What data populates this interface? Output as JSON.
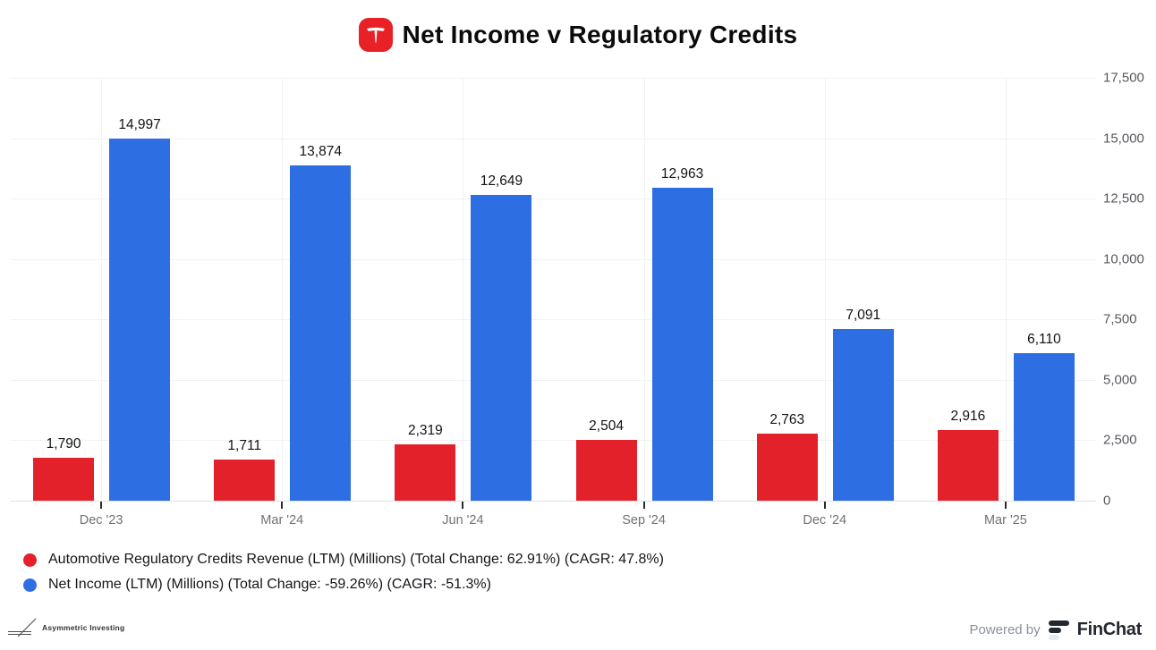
{
  "header": {
    "title": "Net Income v Regulatory Credits",
    "logo": "tesla-icon"
  },
  "chart_data": {
    "type": "bar",
    "title": "Net Income v Regulatory Credits",
    "categories": [
      "Dec '23",
      "Mar '24",
      "Jun '24",
      "Sep '24",
      "Dec '24",
      "Mar '25"
    ],
    "series": [
      {
        "name": "Automotive Regulatory Credits Revenue (LTM) (Millions)",
        "color": "#e3212b",
        "values": [
          1790,
          1711,
          2319,
          2504,
          2763,
          2916
        ]
      },
      {
        "name": "Net Income (LTM) (Millions)",
        "color": "#2d6fe3",
        "values": [
          14997,
          13874,
          12649,
          12963,
          7091,
          6110
        ]
      }
    ],
    "ylim": [
      0,
      17500
    ],
    "ytick_step": 2500,
    "ytick_labels": [
      "0",
      "2,500",
      "5,000",
      "7,500",
      "10,000",
      "12,500",
      "15,000",
      "17,500"
    ],
    "yaxis_side": "right",
    "grid": true,
    "value_labels": true,
    "legend_position": "bottom-left"
  },
  "legend": {
    "items": [
      {
        "label": "Automotive Regulatory Credits Revenue (LTM) (Millions) (Total Change: 62.91%) (CAGR: 47.8%)",
        "color": "#e3212b"
      },
      {
        "label": "Net Income (LTM) (Millions) (Total Change: -59.26%) (CAGR: -51.3%)",
        "color": "#2d6fe3"
      }
    ]
  },
  "footer": {
    "brand_left": "Asymmetric Investing",
    "powered_by_label": "Powered by",
    "brand_right": "FinChat"
  },
  "colors": {
    "accent_red": "#e82127",
    "accent_blue": "#2d6fe3",
    "grid": "#f2f2f3",
    "axis": "#e1e1e3",
    "x_label": "#6f7276",
    "y_label": "#55585d",
    "value_label": "#121316"
  }
}
